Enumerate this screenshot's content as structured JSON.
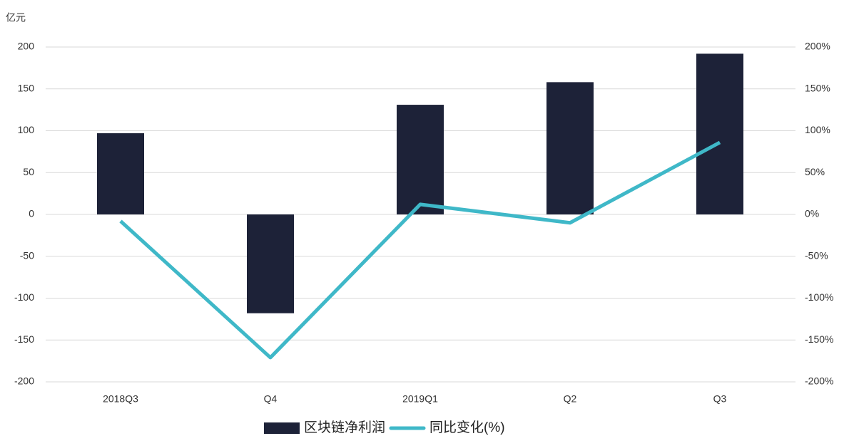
{
  "chart_data": {
    "type": "bar",
    "y_label": "亿元",
    "categories": [
      "2018Q3",
      "Q4",
      "2019Q1",
      "Q2",
      "Q3"
    ],
    "series": [
      {
        "name": "区块链净利润",
        "type": "bar",
        "color": "#1d2238",
        "values": [
          97,
          -118,
          131,
          158,
          192
        ]
      },
      {
        "name": "同比变化(%)",
        "type": "line",
        "axis": "y2",
        "color": "#3fb8c8",
        "values": [
          -8,
          -171,
          12,
          -10,
          86
        ]
      }
    ],
    "ylim": [
      -200,
      200
    ],
    "yticks": [
      -200,
      -150,
      -100,
      -50,
      0,
      50,
      100,
      150,
      200
    ],
    "y2lim": [
      -200,
      200
    ],
    "y2ticks": [
      {
        "value": -200,
        "label": "-200%"
      },
      {
        "value": -150,
        "label": "-150%"
      },
      {
        "value": -100,
        "label": "-100%"
      },
      {
        "value": -50,
        "label": "-50%"
      },
      {
        "value": 0,
        "label": "0%"
      },
      {
        "value": 50,
        "label": "50%"
      },
      {
        "value": 100,
        "label": "100%"
      },
      {
        "value": 150,
        "label": "150%"
      },
      {
        "value": 200,
        "label": "200%"
      }
    ],
    "grid": true,
    "legend": "bottom"
  }
}
